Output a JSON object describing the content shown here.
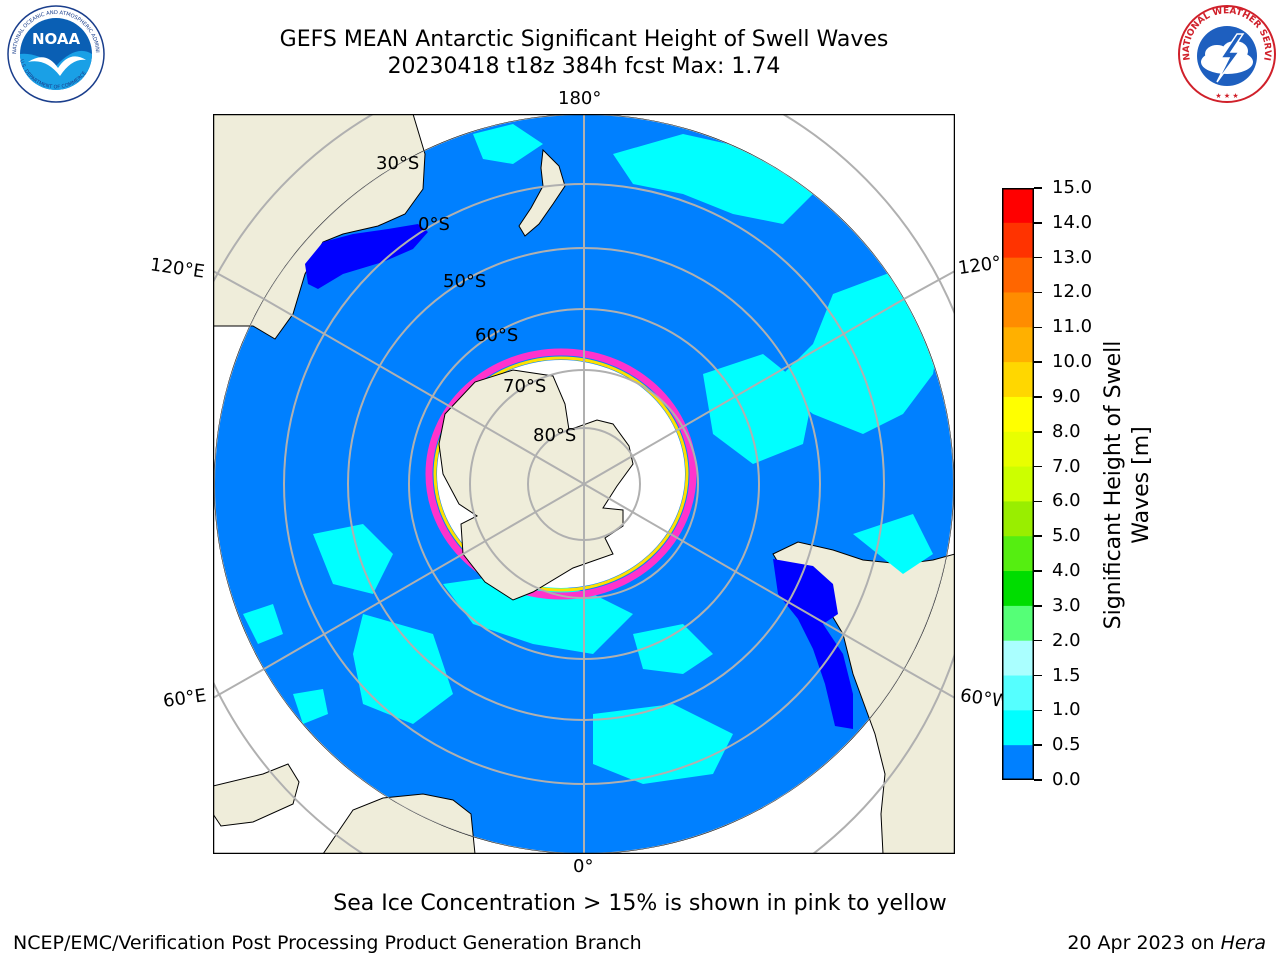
{
  "header": {
    "title_line1": "GEFS MEAN Antarctic Significant Height of Swell Waves",
    "title_line2": "20230418 t18z 384h fcst   Max: 1.74"
  },
  "logos": {
    "noaa_text": "NOAA",
    "noaa_ring_text": "NATIONAL OCEANIC AND ATMOSPHERIC ADMINISTRATION",
    "noaa_bottom_text": "U.S. DEPARTMENT OF COMMERCE",
    "nws_text": "NATIONAL WEATHER SERVICE"
  },
  "map": {
    "projection": "south polar stereographic",
    "longitude_labels": [
      "180°",
      "120°E",
      "120°",
      "60°E",
      "60°W",
      "0°"
    ],
    "latitude_labels": [
      "30°S",
      "0°S",
      "50°S",
      "60°S",
      "70°S",
      "80°S"
    ],
    "colors": {
      "land": "#efedda",
      "ocean_base": "#0080ff",
      "ocean_high": "#00ffff",
      "coast_low": "#0000ff",
      "sea_ice_edge": "#ff33cc",
      "grid": "#b0b0b0"
    }
  },
  "colorbar": {
    "label": "Significant Height of Swell Waves [m]",
    "label_line1": "Significant Height of Swell",
    "label_line2": "Waves [m]",
    "ticks": [
      "15.0",
      "14.0",
      "13.0",
      "12.0",
      "11.0",
      "10.0",
      "9.0",
      "8.0",
      "7.0",
      "6.0",
      "5.0",
      "4.0",
      "3.0",
      "2.0",
      "1.5",
      "1.0",
      "0.5",
      "0.0"
    ],
    "colors_top_to_bottom": [
      "#ff0000",
      "#ff3300",
      "#ff6600",
      "#ff8c00",
      "#ffb000",
      "#ffd700",
      "#ffff00",
      "#e8ff00",
      "#ccff00",
      "#99ee00",
      "#55ee11",
      "#00dd00",
      "#55ff77",
      "#aaffff",
      "#55ffff",
      "#00ffff",
      "#0080ff",
      "#0000ff"
    ]
  },
  "footer": {
    "sea_ice_note": "Sea Ice Concentration > 15% is shown in pink to yellow",
    "credit": "NCEP/EMC/Verification Post Processing Product Generation Branch",
    "date": "20 Apr 2023 on ",
    "host": "Hera"
  }
}
